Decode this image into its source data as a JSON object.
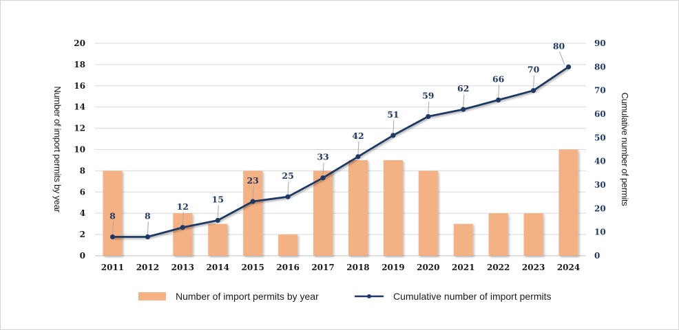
{
  "chart_data": {
    "type": "bar+line",
    "categories": [
      "2011",
      "2012",
      "2013",
      "2014",
      "2015",
      "2016",
      "2017",
      "2018",
      "2019",
      "2020",
      "2021",
      "2022",
      "2023",
      "2024"
    ],
    "series": [
      {
        "name": "Number of import permits by year",
        "type": "bar",
        "axis": "left",
        "values": [
          8,
          0,
          4,
          3,
          8,
          2,
          8,
          9,
          9,
          8,
          3,
          4,
          4,
          10
        ],
        "color": "#f4b183"
      },
      {
        "name": "Cumulative number of import permits",
        "type": "line",
        "axis": "right",
        "values": [
          8,
          8,
          12,
          15,
          23,
          25,
          33,
          42,
          51,
          59,
          62,
          66,
          70,
          80
        ],
        "color": "#1f3864"
      }
    ],
    "left_axis": {
      "label": "Number of import permits by year",
      "range": [
        0,
        20
      ],
      "ticks": [
        "0",
        "2",
        "4",
        "6",
        "8",
        "10",
        "12",
        "14",
        "16",
        "18",
        "20"
      ]
    },
    "right_axis": {
      "label": "Cumulative number of permits",
      "range": [
        0,
        90
      ],
      "ticks": [
        "0",
        "10",
        "20",
        "30",
        "40",
        "50",
        "60",
        "70",
        "80",
        "90"
      ]
    },
    "grid": true,
    "legend_position": "bottom"
  }
}
